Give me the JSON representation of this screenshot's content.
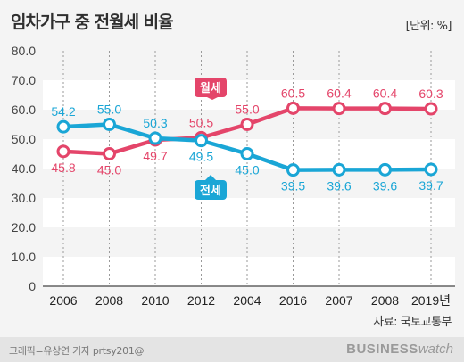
{
  "header": {
    "title": "임차가구 중 전월세 비율",
    "unit": "[단위: %]"
  },
  "source": "자료: 국토교통부",
  "footer": {
    "credit": "그래픽=유상연 기자 prtsy201@",
    "brand_bold": "BUSINESS",
    "brand_light": "watch"
  },
  "colors": {
    "wolse": "#e4456a",
    "jeonse": "#1aa6d6",
    "band": "#ffffff",
    "bg": "#f4f4f4"
  },
  "chart_data": {
    "type": "line",
    "categories": [
      "2006",
      "2008",
      "2010",
      "2012",
      "2004",
      "2016",
      "2007",
      "2008",
      "2019년"
    ],
    "ylim": [
      0,
      80
    ],
    "yticks": [
      "0",
      "10.0",
      "20.0",
      "30.0",
      "40.0",
      "50.0",
      "60.0",
      "70.0",
      "80.0"
    ],
    "grid": "alternating horizontal bands with dotted vertical guides",
    "series": [
      {
        "name": "월세",
        "key": "wolse",
        "values": [
          45.8,
          45.0,
          49.7,
          50.5,
          55.0,
          60.5,
          60.4,
          60.4,
          60.3
        ],
        "labels": [
          "45.8",
          "45.0",
          "49.7",
          "50.5",
          "55.0",
          "60.5",
          "60.4",
          "60.4",
          "60.3"
        ]
      },
      {
        "name": "전세",
        "key": "jeonse",
        "values": [
          54.2,
          55.0,
          50.3,
          49.5,
          45.0,
          39.5,
          39.6,
          39.6,
          39.7
        ],
        "labels": [
          "54.2",
          "55.0",
          "50.3",
          "49.5",
          "45.0",
          "39.5",
          "39.6",
          "39.6",
          "39.7"
        ]
      }
    ]
  }
}
